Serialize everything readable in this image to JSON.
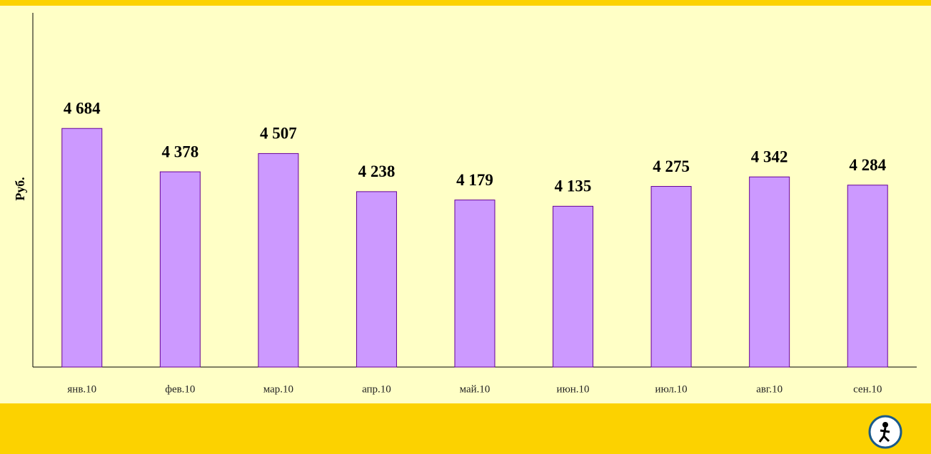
{
  "chart_data": {
    "type": "bar",
    "y_label": "Руб.",
    "categories": [
      "янв.10",
      "фев.10",
      "мар.10",
      "апр.10",
      "май.10",
      "июн.10",
      "июл.10",
      "авг.10",
      "сен.10"
    ],
    "values": [
      4684,
      4378,
      4507,
      4238,
      4179,
      4135,
      4275,
      4342,
      4284
    ],
    "value_labels": [
      "4 684",
      "4 378",
      "4 507",
      "4 238",
      "4 179",
      "4 135",
      "4 275",
      "4 342",
      "4 284"
    ],
    "color": "#cc99ff",
    "ylim": [
      3000,
      5500
    ]
  }
}
